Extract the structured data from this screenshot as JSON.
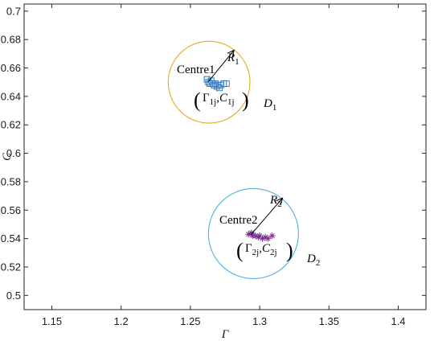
{
  "chart_data": {
    "type": "scatter",
    "xlabel": "Γ",
    "ylabel": "C",
    "xlim": [
      1.13,
      1.42
    ],
    "ylim": [
      0.49,
      0.705
    ],
    "xticks": [
      1.15,
      1.2,
      1.25,
      1.3,
      1.35,
      1.4
    ],
    "yticks": [
      0.5,
      0.52,
      0.54,
      0.56,
      0.58,
      0.6,
      0.62,
      0.64,
      0.66,
      0.68,
      0.7
    ],
    "xtick_labels": [
      "1.15",
      "1.2",
      "1.25",
      "1.3",
      "1.35",
      "1.4"
    ],
    "ytick_labels": [
      "0.5",
      "0.52",
      "0.54",
      "0.56",
      "0.58",
      "0.6",
      "0.62",
      "0.64",
      "0.66",
      "0.68",
      "0.7"
    ],
    "grid": false,
    "series": [
      {
        "marker": "square",
        "color": "#2f78c4",
        "points": [
          [
            1.262,
            0.652
          ],
          [
            1.263,
            0.65
          ],
          [
            1.264,
            0.649
          ],
          [
            1.265,
            0.651
          ],
          [
            1.266,
            0.649
          ],
          [
            1.267,
            0.648
          ],
          [
            1.268,
            0.649
          ],
          [
            1.269,
            0.647
          ],
          [
            1.27,
            0.648
          ],
          [
            1.271,
            0.646
          ],
          [
            1.272,
            0.648
          ],
          [
            1.274,
            0.649
          ],
          [
            1.276,
            0.649
          ]
        ]
      },
      {
        "marker": "asterisk",
        "color": "#7b2f8c",
        "points": [
          [
            1.292,
            0.543
          ],
          [
            1.294,
            0.544
          ],
          [
            1.295,
            0.542
          ],
          [
            1.297,
            0.542
          ],
          [
            1.299,
            0.541
          ],
          [
            1.3,
            0.542
          ],
          [
            1.302,
            0.54
          ],
          [
            1.304,
            0.541
          ],
          [
            1.306,
            0.54
          ],
          [
            1.309,
            0.542
          ]
        ]
      }
    ],
    "circles": [
      {
        "label": "D1",
        "cx": 1.2635,
        "cy": 0.65,
        "r_x": 0.0295,
        "color": "#e8a825"
      },
      {
        "label": "D2",
        "cx": 1.2955,
        "cy": 0.5435,
        "r_x": 0.0325,
        "color": "#4fb3de"
      }
    ],
    "arrows": [
      {
        "from": [
          1.263,
          0.6505
        ],
        "to": [
          1.2815,
          0.6725
        ],
        "label": "R1"
      },
      {
        "from": [
          1.2935,
          0.5425
        ],
        "to": [
          1.3165,
          0.5685
        ],
        "label": "R2"
      }
    ],
    "annotations": {
      "centre1": "Centre1",
      "centre2": "Centre2",
      "R1": "R",
      "R1_sub": "1",
      "R2": "R",
      "R2_sub": "2",
      "D1": "D",
      "D1_sub": "1",
      "D2": "D",
      "D2_sub": "2",
      "pair1_gamma": "Γ",
      "pair1_gamma_sub": "1j",
      "pair1_c": "C",
      "pair1_c_sub": "1j",
      "pair2_gamma": "Γ",
      "pair2_gamma_sub": "2j",
      "pair2_c": "C",
      "pair2_c_sub": "2j",
      "comma": ",",
      "lparen": "(",
      "rparen": ")"
    }
  }
}
